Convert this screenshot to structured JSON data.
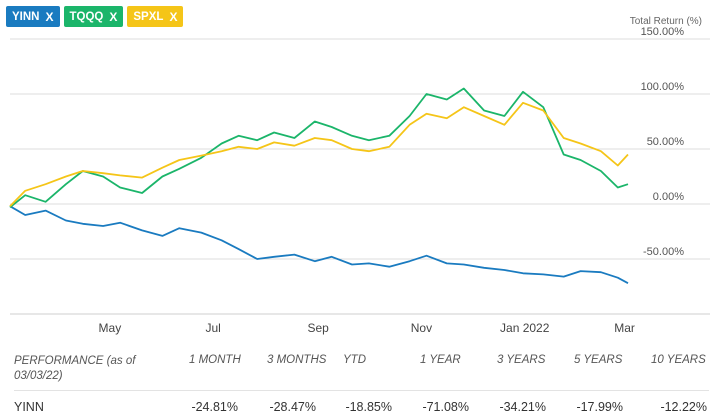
{
  "chips": [
    {
      "label": "YINN",
      "color": "#1a7bc0"
    },
    {
      "label": "TQQQ",
      "color": "#1bb56a"
    },
    {
      "label": "SPXL",
      "color": "#f5c518"
    }
  ],
  "chip_close_glyph": "X",
  "chart_data": {
    "type": "line",
    "ylabel": "Total Return (%)",
    "ylim": [
      -100,
      150
    ],
    "yticks": [
      150,
      100,
      50,
      0,
      -50
    ],
    "ytick_labels": [
      "150.00%",
      "100.00%",
      "50.00%",
      "0.00%",
      "-50.00%"
    ],
    "x_range": [
      "2021-03-03",
      "2022-03-03"
    ],
    "xtick_labels": [
      {
        "date": "2021-05-01",
        "label": "May"
      },
      {
        "date": "2021-07-01",
        "label": "Jul"
      },
      {
        "date": "2021-09-01",
        "label": "Sep"
      },
      {
        "date": "2021-11-01",
        "label": "Nov"
      },
      {
        "date": "2022-01-01",
        "label": "Jan 2022"
      },
      {
        "date": "2022-03-01",
        "label": "Mar"
      }
    ],
    "grid": "horizontal",
    "series": [
      {
        "name": "YINN",
        "color": "#1a7bc0",
        "x": [
          "2021-03-03",
          "2021-03-12",
          "2021-03-24",
          "2021-04-05",
          "2021-04-15",
          "2021-04-27",
          "2021-05-07",
          "2021-05-20",
          "2021-06-01",
          "2021-06-11",
          "2021-06-24",
          "2021-07-06",
          "2021-07-16",
          "2021-07-27",
          "2021-08-06",
          "2021-08-18",
          "2021-08-30",
          "2021-09-09",
          "2021-09-21",
          "2021-10-01",
          "2021-10-13",
          "2021-10-25",
          "2021-11-04",
          "2021-11-16",
          "2021-11-26",
          "2021-12-08",
          "2021-12-20",
          "2021-12-31",
          "2022-01-12",
          "2022-01-24",
          "2022-02-03",
          "2022-02-15",
          "2022-02-25",
          "2022-03-03"
        ],
        "y": [
          -2,
          -10,
          -6,
          -15,
          -18,
          -20,
          -17,
          -24,
          -29,
          -22,
          -26,
          -33,
          -41,
          -50,
          -48,
          -46,
          -52,
          -48,
          -55,
          -54,
          -57,
          -52,
          -47,
          -54,
          -55,
          -58,
          -60,
          -63,
          -64,
          -66,
          -61,
          -62,
          -67,
          -72
        ]
      },
      {
        "name": "TQQQ",
        "color": "#1bb56a",
        "x": [
          "2021-03-03",
          "2021-03-12",
          "2021-03-24",
          "2021-04-05",
          "2021-04-15",
          "2021-04-27",
          "2021-05-07",
          "2021-05-20",
          "2021-06-01",
          "2021-06-11",
          "2021-06-24",
          "2021-07-06",
          "2021-07-16",
          "2021-07-27",
          "2021-08-06",
          "2021-08-18",
          "2021-08-30",
          "2021-09-09",
          "2021-09-21",
          "2021-10-01",
          "2021-10-13",
          "2021-10-25",
          "2021-11-04",
          "2021-11-16",
          "2021-11-26",
          "2021-12-08",
          "2021-12-20",
          "2021-12-31",
          "2022-01-12",
          "2022-01-24",
          "2022-02-03",
          "2022-02-15",
          "2022-02-25",
          "2022-03-03"
        ],
        "y": [
          -3,
          8,
          2,
          18,
          30,
          25,
          15,
          10,
          25,
          32,
          42,
          55,
          62,
          58,
          65,
          60,
          75,
          70,
          62,
          58,
          62,
          80,
          100,
          95,
          105,
          85,
          80,
          102,
          88,
          45,
          40,
          30,
          15,
          18
        ]
      },
      {
        "name": "SPXL",
        "color": "#f5c518",
        "x": [
          "2021-03-03",
          "2021-03-12",
          "2021-03-24",
          "2021-04-05",
          "2021-04-15",
          "2021-04-27",
          "2021-05-07",
          "2021-05-20",
          "2021-06-01",
          "2021-06-11",
          "2021-06-24",
          "2021-07-06",
          "2021-07-16",
          "2021-07-27",
          "2021-08-06",
          "2021-08-18",
          "2021-08-30",
          "2021-09-09",
          "2021-09-21",
          "2021-10-01",
          "2021-10-13",
          "2021-10-25",
          "2021-11-04",
          "2021-11-16",
          "2021-11-26",
          "2021-12-08",
          "2021-12-20",
          "2021-12-31",
          "2022-01-12",
          "2022-01-24",
          "2022-02-03",
          "2022-02-15",
          "2022-02-25",
          "2022-03-03"
        ],
        "y": [
          -2,
          12,
          18,
          25,
          30,
          28,
          26,
          24,
          33,
          40,
          44,
          48,
          52,
          50,
          56,
          53,
          60,
          58,
          50,
          48,
          52,
          72,
          82,
          78,
          88,
          80,
          72,
          92,
          85,
          60,
          55,
          48,
          35,
          45
        ]
      }
    ]
  },
  "performance": {
    "header_label": "PERFORMANCE (as of 03/03/22)",
    "columns": [
      "1 MONTH",
      "3 MONTHS",
      "YTD",
      "1 YEAR",
      "3 YEARS",
      "5 YEARS",
      "10 YEARS"
    ],
    "rows": [
      {
        "name": "YINN",
        "values": [
          "-24.81%",
          "-28.47%",
          "-18.85%",
          "-71.08%",
          "-34.21%",
          "-17.99%",
          "-12.22%"
        ]
      }
    ]
  }
}
